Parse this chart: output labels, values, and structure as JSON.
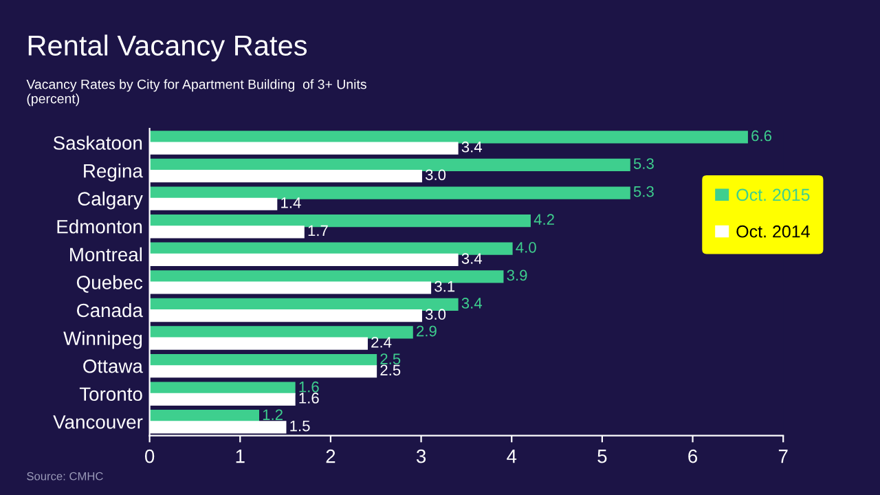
{
  "chart_data": {
    "type": "bar",
    "orientation": "horizontal",
    "title": "Rental Vacancy Rates",
    "subtitle": "Vacancy Rates by City for Apartment Building  of 3+ Units\n(percent)",
    "categories": [
      "Saskatoon",
      "Regina",
      "Calgary",
      "Edmonton",
      "Montreal",
      "Quebec",
      "Canada",
      "Winnipeg",
      "Ottawa",
      "Toronto",
      "Vancouver"
    ],
    "series": [
      {
        "name": "Oct. 2015",
        "color": "#3ecf8e",
        "values": [
          6.6,
          5.3,
          5.3,
          4.2,
          4.0,
          3.9,
          3.4,
          2.9,
          2.5,
          1.6,
          1.2
        ],
        "value_labels": [
          "6.6",
          "5.3",
          "5.3",
          "4.2",
          "4.0",
          "3.9",
          "3.4",
          "2.9",
          "2.5",
          "1.6",
          "1.2"
        ]
      },
      {
        "name": "Oct. 2014",
        "color": "#ffffff",
        "values": [
          3.4,
          3.0,
          1.4,
          1.7,
          3.4,
          3.1,
          3.0,
          2.4,
          2.5,
          1.6,
          1.5
        ],
        "value_labels": [
          "3.4",
          "3.0",
          "1.4",
          "1.7",
          "3.4",
          "3.1",
          "3.0",
          "2.4",
          "2.5",
          "1.6",
          "1.5"
        ]
      }
    ],
    "xlim": [
      0,
      7
    ],
    "xticks": [
      0,
      1,
      2,
      3,
      4,
      5,
      6,
      7
    ],
    "grid": false,
    "legend": "right",
    "annotations": [
      "Source: CMHC"
    ]
  }
}
